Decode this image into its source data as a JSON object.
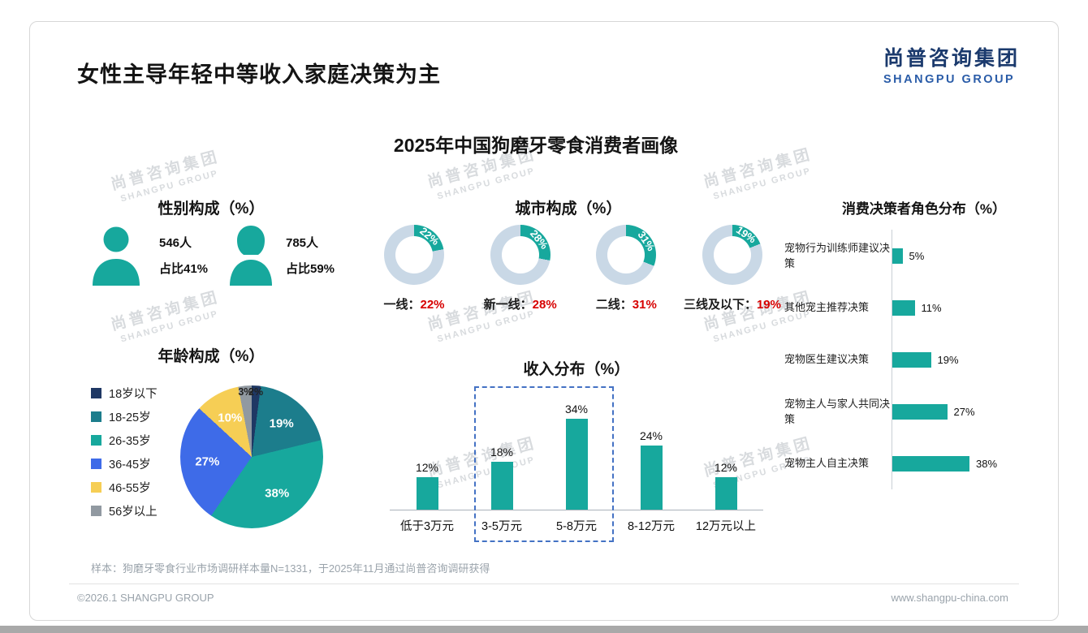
{
  "header": {
    "title": "女性主导年轻中等收入家庭决策为主",
    "logo_cn": "尚普咨询集团",
    "logo_en": "SHANGPU GROUP"
  },
  "main_title": "2025年中国狗磨牙零食消费者画像",
  "watermark": {
    "cn": "尚普咨询集团",
    "en": "SHANGPU GROUP"
  },
  "colors": {
    "teal": "#17A89D",
    "donut_rest": "#C9D8E6",
    "red": "#D70000",
    "navy": "#1F3864",
    "dark_teal": "#1C7D8C",
    "blue": "#3E6BE8",
    "yellow": "#F6CE55",
    "gray": "#9199A1"
  },
  "gender": {
    "heading": "性别构成（%）",
    "male": {
      "count": "546人",
      "share": "占比41%"
    },
    "female": {
      "count": "785人",
      "share": "占比59%"
    }
  },
  "chart_data": [
    {
      "id": "city",
      "type": "pie",
      "subtype": "donut-set",
      "title": "城市构成（%）",
      "separator": "：",
      "items": [
        {
          "label": "一线",
          "value": 22,
          "display": "22%"
        },
        {
          "label": "新一线",
          "value": 28,
          "display": "28%"
        },
        {
          "label": "二线",
          "value": 31,
          "display": "31%"
        },
        {
          "label": "三线及以下",
          "value": 19,
          "display": "19%"
        }
      ]
    },
    {
      "id": "decision",
      "type": "bar",
      "orientation": "horizontal",
      "title": "消费决策者角色分布（%）",
      "categories": [
        "宠物行为训练师建议决策",
        "其他宠主推荐决策",
        "宠物医生建议决策",
        "宠物主人与家人共同决策",
        "宠物主人自主决策"
      ],
      "values": [
        5,
        11,
        19,
        27,
        38
      ],
      "value_labels": [
        "5%",
        "11%",
        "19%",
        "27%",
        "38%"
      ],
      "xlim": [
        0,
        40
      ]
    },
    {
      "id": "age",
      "type": "pie",
      "title": "年龄构成（%）",
      "categories": [
        "18岁以下",
        "18-25岁",
        "26-35岁",
        "36-45岁",
        "46-55岁",
        "56岁以上"
      ],
      "values": [
        2,
        19,
        38,
        27,
        10,
        3
      ],
      "value_labels": [
        "2%",
        "19%",
        "38%",
        "27%",
        "10%",
        "3%"
      ],
      "colors": [
        "#1F3864",
        "#1C7D8C",
        "#17A89D",
        "#3E6BE8",
        "#F6CE55",
        "#9199A1"
      ],
      "legend_position": "left"
    },
    {
      "id": "income",
      "type": "bar",
      "orientation": "vertical",
      "title": "收入分布（%）",
      "categories": [
        "低于3万元",
        "3-5万元",
        "5-8万元",
        "8-12万元",
        "12万元以上"
      ],
      "values": [
        12,
        18,
        34,
        24,
        12
      ],
      "value_labels": [
        "12%",
        "18%",
        "34%",
        "24%",
        "12%"
      ],
      "highlight_indices": [
        1,
        2
      ],
      "ylim": [
        0,
        40
      ]
    }
  ],
  "footer": {
    "note": "样本：狗磨牙零食行业市场调研样本量N=1331，于2025年11月通过尚普咨询调研获得",
    "copyright": "©2026.1 SHANGPU GROUP",
    "website": "www.shangpu-china.com"
  }
}
